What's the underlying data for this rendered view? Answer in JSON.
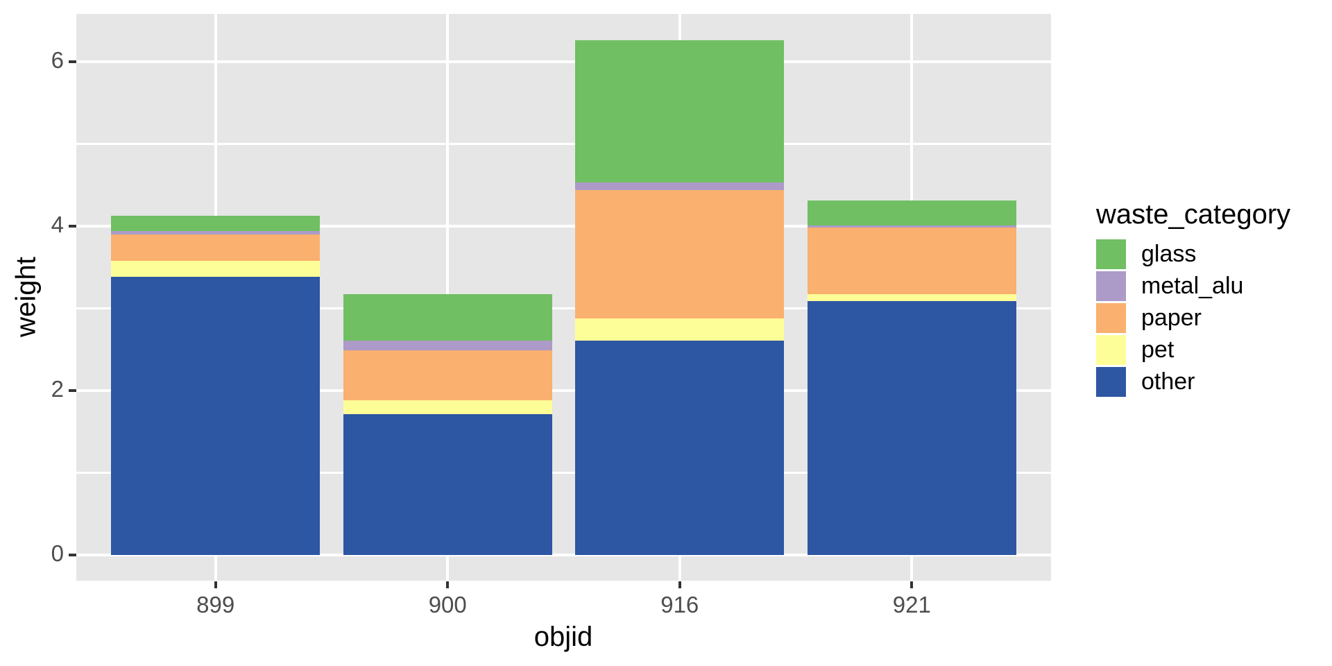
{
  "figure": {
    "background": "#FFFFFF",
    "panel_background": "#E6E6E6",
    "grid_color": "#FFFFFF",
    "tick_label_color": "#4D4D4D",
    "tick_mark_color": "#333333",
    "axis_title_color": "#000000"
  },
  "chart_data": {
    "type": "bar",
    "stacked": true,
    "title": "",
    "xlabel": "objid",
    "ylabel": "weight",
    "categories": [
      "899",
      "900",
      "916",
      "921"
    ],
    "series": [
      {
        "name": "other",
        "color": "#2D56A3",
        "values": [
          3.38,
          1.71,
          2.61,
          3.09
        ]
      },
      {
        "name": "pet",
        "color": "#FEFE98",
        "values": [
          0.2,
          0.17,
          0.27,
          0.08
        ]
      },
      {
        "name": "paper",
        "color": "#FAB06E",
        "values": [
          0.32,
          0.61,
          1.56,
          0.81
        ]
      },
      {
        "name": "metal_alu",
        "color": "#AC9AC8",
        "values": [
          0.04,
          0.12,
          0.09,
          0.03
        ]
      },
      {
        "name": "glass",
        "color": "#70BF63",
        "values": [
          0.19,
          0.56,
          1.73,
          0.3
        ]
      }
    ],
    "stack_order_bottom_to_top": [
      "other",
      "pet",
      "paper",
      "metal_alu",
      "glass"
    ],
    "totals": [
      4.13,
      3.17,
      6.26,
      4.31
    ],
    "y_ticks": [
      "0",
      "2",
      "4",
      "6"
    ],
    "y_tick_values": [
      0,
      2,
      4,
      6
    ],
    "y_minor_values": [
      1,
      3,
      5
    ],
    "ylim": [
      -0.31,
      6.58
    ],
    "grid": true,
    "legend": {
      "title": "waste_category",
      "position": "right",
      "entries": [
        "glass",
        "metal_alu",
        "paper",
        "pet",
        "other"
      ]
    }
  }
}
